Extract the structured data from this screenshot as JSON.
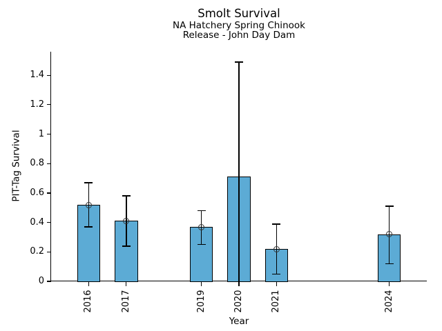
{
  "chart_data": {
    "type": "bar",
    "title": "Smolt Survival",
    "subtitle1": "NA Hatchery Spring Chinook",
    "subtitle2": "Release - John Day Dam",
    "xlabel": "Year",
    "ylabel": "PIT-Tag Survival",
    "xlim": [
      2015,
      2025
    ],
    "ylim": [
      0,
      1.56
    ],
    "grid": false,
    "legend": "none",
    "yticks": [
      0,
      0.2,
      0.4,
      0.6,
      0.8,
      1,
      1.2,
      1.4
    ],
    "ytick_labels": [
      "0",
      "0.2",
      "0.4",
      "0.6",
      "0.8",
      "1",
      "1.2",
      "1.4"
    ],
    "bar_color": "#5CABD5",
    "bar_edge_color": "#000000",
    "error_bar_color": "#000000",
    "marker_color": "#333333",
    "bar_width_years": 0.62,
    "points": [
      {
        "year": 2016,
        "value": 0.52,
        "ci_low": 0.37,
        "ci_high": 0.67,
        "marker": true,
        "cap_low": true
      },
      {
        "year": 2017,
        "value": 0.41,
        "ci_low": 0.24,
        "ci_high": 0.58,
        "marker": true,
        "cap_low": true
      },
      {
        "year": 2019,
        "value": 0.37,
        "ci_low": 0.25,
        "ci_high": 0.48,
        "marker": true,
        "cap_low": true
      },
      {
        "year": 2020,
        "value": 0.71,
        "ci_low": 0.0,
        "ci_high": 1.49,
        "marker": false,
        "cap_low": false
      },
      {
        "year": 2021,
        "value": 0.22,
        "ci_low": 0.05,
        "ci_high": 0.39,
        "marker": true,
        "cap_low": true
      },
      {
        "year": 2024,
        "value": 0.32,
        "ci_low": 0.12,
        "ci_high": 0.51,
        "marker": true,
        "cap_low": true
      }
    ]
  }
}
